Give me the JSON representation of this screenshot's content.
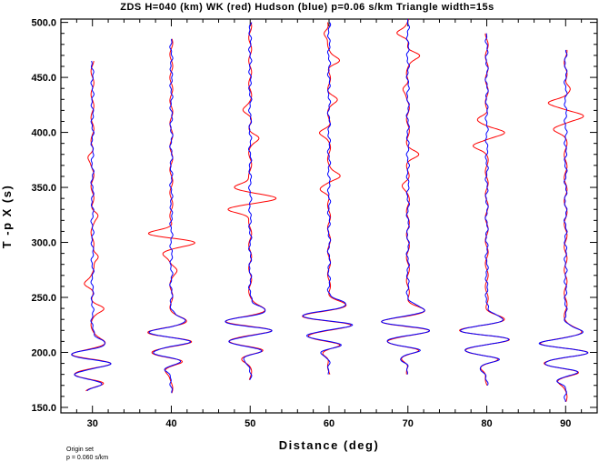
{
  "chart_data": {
    "type": "line",
    "title": "ZDS H=040 (km) WK (red) Hudson (blue) p=0.06 s/km Triangle width=15s",
    "xlabel": "Distance (deg)",
    "ylabel": "T -p X (s)",
    "xlim": [
      26,
      94
    ],
    "ylim": [
      145,
      503
    ],
    "x_ticks": [
      "30",
      "40",
      "50",
      "60",
      "70",
      "80",
      "90"
    ],
    "y_ticks": [
      "150.0",
      "200.0",
      "250.0",
      "300.0",
      "350.0",
      "400.0",
      "450.0",
      "500.0"
    ],
    "grid": false,
    "series_colors": {
      "wk": "#ff0000",
      "hudson": "#0000ff"
    },
    "traces": [
      {
        "distance": 30,
        "t_start": 165,
        "t_end": 465,
        "arrival": 190,
        "amp": 3.2,
        "red_pulses": [
          [
            240,
            1.4
          ],
          [
            262,
            -1.0
          ],
          [
            287,
            0.9
          ],
          [
            325,
            0.7
          ],
          [
            378,
            -0.6
          ]
        ]
      },
      {
        "distance": 40,
        "t_start": 163,
        "t_end": 485,
        "arrival": 210,
        "amp": 3.4,
        "red_pulses": [
          [
            300,
            3.2
          ],
          [
            308,
            -3.0
          ],
          [
            290,
            -1.2
          ],
          [
            275,
            0.6
          ]
        ]
      },
      {
        "distance": 50,
        "t_start": 175,
        "t_end": 500,
        "arrival": 220,
        "amp": 3.8,
        "red_pulses": [
          [
            340,
            3.5
          ],
          [
            330,
            -3.0
          ],
          [
            350,
            -2.2
          ],
          [
            395,
            1.0
          ],
          [
            420,
            -0.8
          ]
        ]
      },
      {
        "distance": 60,
        "t_start": 180,
        "t_end": 500,
        "arrival": 225,
        "amp": 4.0,
        "red_pulses": [
          [
            360,
            1.4
          ],
          [
            348,
            -1.2
          ],
          [
            400,
            -1.1
          ],
          [
            465,
            1.3
          ],
          [
            430,
            0.9
          ],
          [
            490,
            -0.8
          ]
        ]
      },
      {
        "distance": 70,
        "t_start": 180,
        "t_end": 503,
        "arrival": 220,
        "amp": 4.0,
        "red_pulses": [
          [
            380,
            1.2
          ],
          [
            470,
            1.5
          ],
          [
            490,
            -1.4
          ],
          [
            440,
            -0.7
          ],
          [
            352,
            -0.6
          ]
        ]
      },
      {
        "distance": 80,
        "t_start": 170,
        "t_end": 490,
        "arrival": 212,
        "amp": 4.0,
        "red_pulses": [
          [
            400,
            2.2
          ],
          [
            388,
            -1.6
          ],
          [
            412,
            -1.2
          ]
        ]
      },
      {
        "distance": 90,
        "t_start": 155,
        "t_end": 475,
        "arrival": 200,
        "amp": 3.8,
        "red_pulses": [
          [
            415,
            2.2
          ],
          [
            427,
            -2.2
          ],
          [
            403,
            -1.4
          ],
          [
            440,
            0.7
          ]
        ]
      }
    ]
  },
  "footnote": {
    "line1": "Origin set",
    "line2": "p = 0.060 s/km"
  }
}
